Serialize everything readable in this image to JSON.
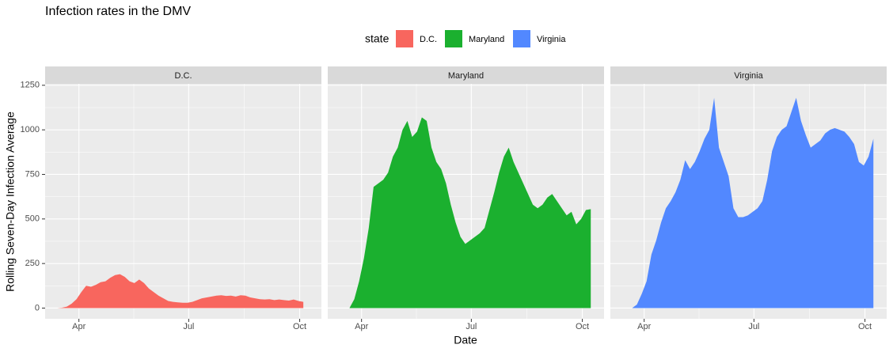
{
  "chart_data": {
    "type": "area",
    "title": "Infection rates in the DMV",
    "xlabel": "Date",
    "ylabel": "Rolling Seven-Day Infection Average",
    "legend_title": "state",
    "legend": "top",
    "grid": true,
    "facet": true,
    "x": [
      74,
      78,
      82,
      86,
      90,
      94,
      98,
      102,
      106,
      110,
      114,
      118,
      122,
      126,
      130,
      134,
      138,
      142,
      146,
      150,
      154,
      158,
      162,
      166,
      170,
      174,
      178,
      182,
      186,
      190,
      194,
      198,
      202,
      206,
      210,
      214,
      218,
      222,
      226,
      230,
      234,
      238,
      242,
      246,
      250,
      254,
      258,
      262,
      266,
      270,
      274,
      278,
      282
    ],
    "xlim": [
      64,
      293
    ],
    "xticks": [
      {
        "value": 92,
        "label": "Apr"
      },
      {
        "value": 183,
        "label": "Jul"
      },
      {
        "value": 275,
        "label": "Oct"
      }
    ],
    "ylim": [
      -60,
      1258
    ],
    "yticks": [
      0,
      250,
      500,
      750,
      1000,
      1250
    ],
    "series": [
      {
        "name": "D.C.",
        "color": "#f8665e",
        "values": [
          0,
          2,
          8,
          25,
          50,
          90,
          125,
          120,
          130,
          145,
          150,
          170,
          185,
          190,
          175,
          150,
          140,
          160,
          140,
          110,
          90,
          70,
          55,
          40,
          35,
          32,
          30,
          30,
          35,
          45,
          55,
          60,
          65,
          70,
          72,
          68,
          70,
          65,
          72,
          70,
          60,
          55,
          50,
          48,
          50,
          45,
          48,
          45,
          42,
          48,
          40,
          35,
          null
        ]
      },
      {
        "name": "Maryland",
        "color": "#1bb02f",
        "values": [
          null,
          null,
          0,
          50,
          150,
          280,
          450,
          680,
          700,
          720,
          760,
          850,
          900,
          1000,
          1050,
          960,
          990,
          1070,
          1050,
          900,
          820,
          780,
          700,
          580,
          480,
          400,
          360,
          380,
          400,
          420,
          450,
          550,
          650,
          760,
          850,
          900,
          820,
          760,
          700,
          640,
          580,
          560,
          580,
          620,
          640,
          600,
          560,
          520,
          540,
          470,
          500,
          550,
          555
        ]
      },
      {
        "name": "Virginia",
        "color": "#5288ff",
        "values": [
          null,
          null,
          0,
          20,
          80,
          150,
          300,
          380,
          480,
          560,
          600,
          650,
          720,
          830,
          780,
          820,
          880,
          950,
          1000,
          1180,
          900,
          820,
          740,
          560,
          510,
          510,
          520,
          540,
          560,
          600,
          720,
          880,
          960,
          1000,
          1020,
          1100,
          1180,
          1050,
          970,
          900,
          920,
          940,
          980,
          1000,
          1010,
          1000,
          990,
          960,
          920,
          820,
          800,
          850,
          950
        ]
      }
    ]
  }
}
